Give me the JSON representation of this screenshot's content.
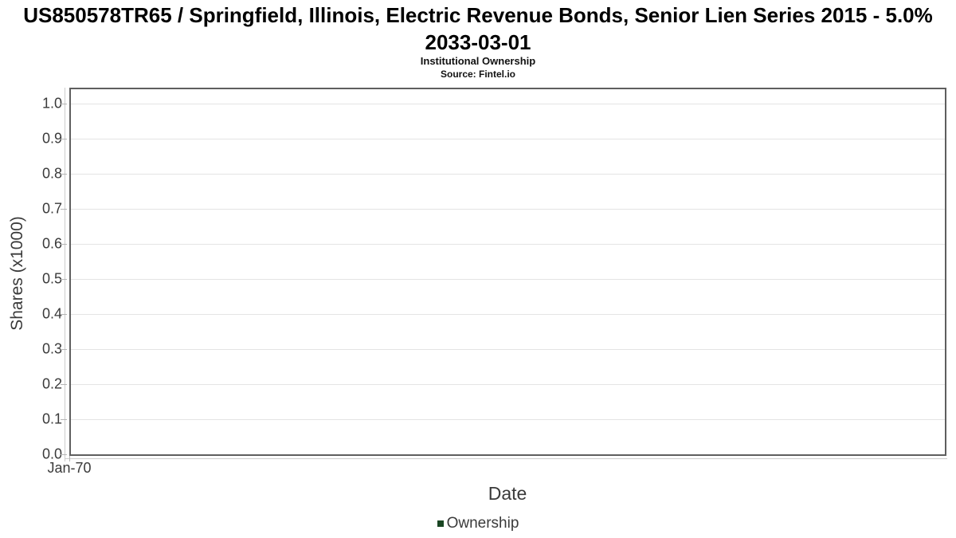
{
  "chart_data": {
    "type": "line",
    "title": "US850578TR65 / Springfield, Illinois, Electric Revenue Bonds, Senior Lien Series 2015 - 5.0% 2033-03-01",
    "subtitle": "Institutional Ownership",
    "source": "Source: Fintel.io",
    "xlabel": "Date",
    "ylabel": "Shares (x1000)",
    "xticks": [
      "Jan-70"
    ],
    "yticks": [
      "0.0",
      "0.1",
      "0.2",
      "0.3",
      "0.4",
      "0.5",
      "0.6",
      "0.7",
      "0.8",
      "0.9",
      "1.0"
    ],
    "ylim": [
      0,
      1.04
    ],
    "grid": true,
    "legend_position": "bottom-center",
    "series": [
      {
        "name": "Ownership",
        "color": "#1a4623",
        "values": []
      }
    ]
  },
  "colors": {
    "legend_marker_green": "#1a4623",
    "gridline": "#e4e4e4",
    "plot_border": "#5f5f5f"
  }
}
